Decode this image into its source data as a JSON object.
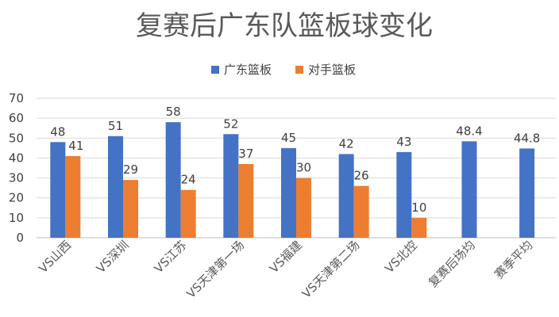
{
  "chart_data": {
    "type": "bar",
    "title": "复赛后广东队篮板球变化",
    "categories": [
      "VS山西",
      "VS深圳",
      "VS江苏",
      "VS天津第一场",
      "VS福建",
      "VS天津第二场",
      "VS北控",
      "复赛后场均",
      "赛季平均"
    ],
    "series": [
      {
        "name": "广东篮板",
        "color": "#4472C4",
        "values": [
          48,
          51,
          58,
          52,
          45,
          42,
          43,
          48.4,
          44.8
        ]
      },
      {
        "name": "对手篮板",
        "color": "#ED7D31",
        "values": [
          41,
          29,
          24,
          37,
          30,
          26,
          10,
          null,
          null
        ]
      }
    ],
    "yticks": [
      0,
      10,
      20,
      30,
      40,
      50,
      60,
      70
    ],
    "ylim": [
      0,
      70
    ],
    "grid": true,
    "legend": "top-center"
  }
}
